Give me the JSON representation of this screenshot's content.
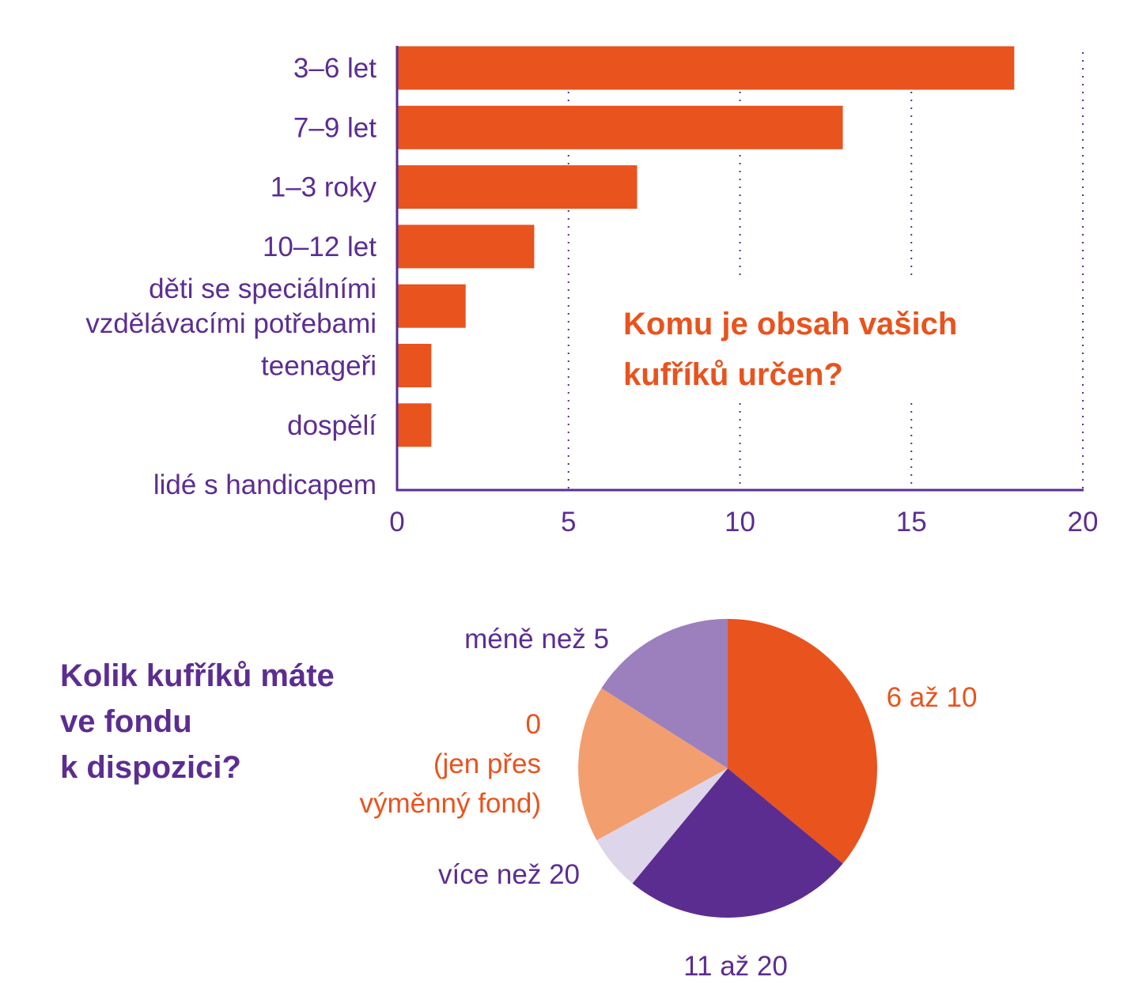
{
  "colors": {
    "orange": "#e8531e",
    "purple": "#5c2d91",
    "light_purple": "#9b80bd",
    "pale_lilac": "#ddd5ea",
    "peach": "#f29e6f"
  },
  "chart_data": [
    {
      "type": "bar",
      "orientation": "horizontal",
      "title": "Komu je obsah vašich kufříků určen?",
      "title_lines": [
        "Komu je obsah vašich",
        "kufříků určen?"
      ],
      "categories": [
        "3–6 let",
        "7–9 let",
        "1–3 roky",
        "10–12 let",
        "děti se speciálními vzdělávacími potřebami",
        "teenageři",
        "dospělí",
        "lidé s handicapem"
      ],
      "category_lines": [
        [
          "3–6 let"
        ],
        [
          "7–9 let"
        ],
        [
          "1–3 roky"
        ],
        [
          "10–12 let"
        ],
        [
          "děti se speciálními",
          "vzdělávacími potřebami"
        ],
        [
          "teenageři"
        ],
        [
          "dospělí"
        ],
        [
          "lidé s handicapem"
        ]
      ],
      "values": [
        18,
        13,
        7,
        4,
        2,
        1,
        1,
        0
      ],
      "xlim": [
        0,
        20
      ],
      "xticks": [
        0,
        5,
        10,
        15,
        20
      ],
      "grid": "vertical dotted",
      "bar_color": "#e8531e",
      "axis_color": "#5c2d91"
    },
    {
      "type": "pie",
      "title": "Kolik kufříků máte ve fondu k dispozici?",
      "title_lines": [
        "Kolik kufříků máte",
        "ve fondu",
        "k dispozici?"
      ],
      "slices": [
        {
          "label": "6 až 10",
          "label_lines": [
            "6 až 10"
          ],
          "value": 36,
          "color": "#e8531e",
          "label_color": "#e8531e"
        },
        {
          "label": "11 až 20",
          "label_lines": [
            "11 až 20"
          ],
          "value": 25,
          "color": "#5c2d91",
          "label_color": "#5c2d91"
        },
        {
          "label": "více než 20",
          "label_lines": [
            "více než 20"
          ],
          "value": 6,
          "color": "#ddd5ea",
          "label_color": "#5c2d91"
        },
        {
          "label": "0 (jen přes výměnný fond)",
          "label_lines": [
            "0",
            "(jen přes",
            "výměnný fond)"
          ],
          "value": 17,
          "color": "#f29e6f",
          "label_color": "#e8531e"
        },
        {
          "label": "méně než 5",
          "label_lines": [
            "méně než 5"
          ],
          "value": 16,
          "color": "#9b80bd",
          "label_color": "#5c2d91"
        }
      ]
    }
  ]
}
